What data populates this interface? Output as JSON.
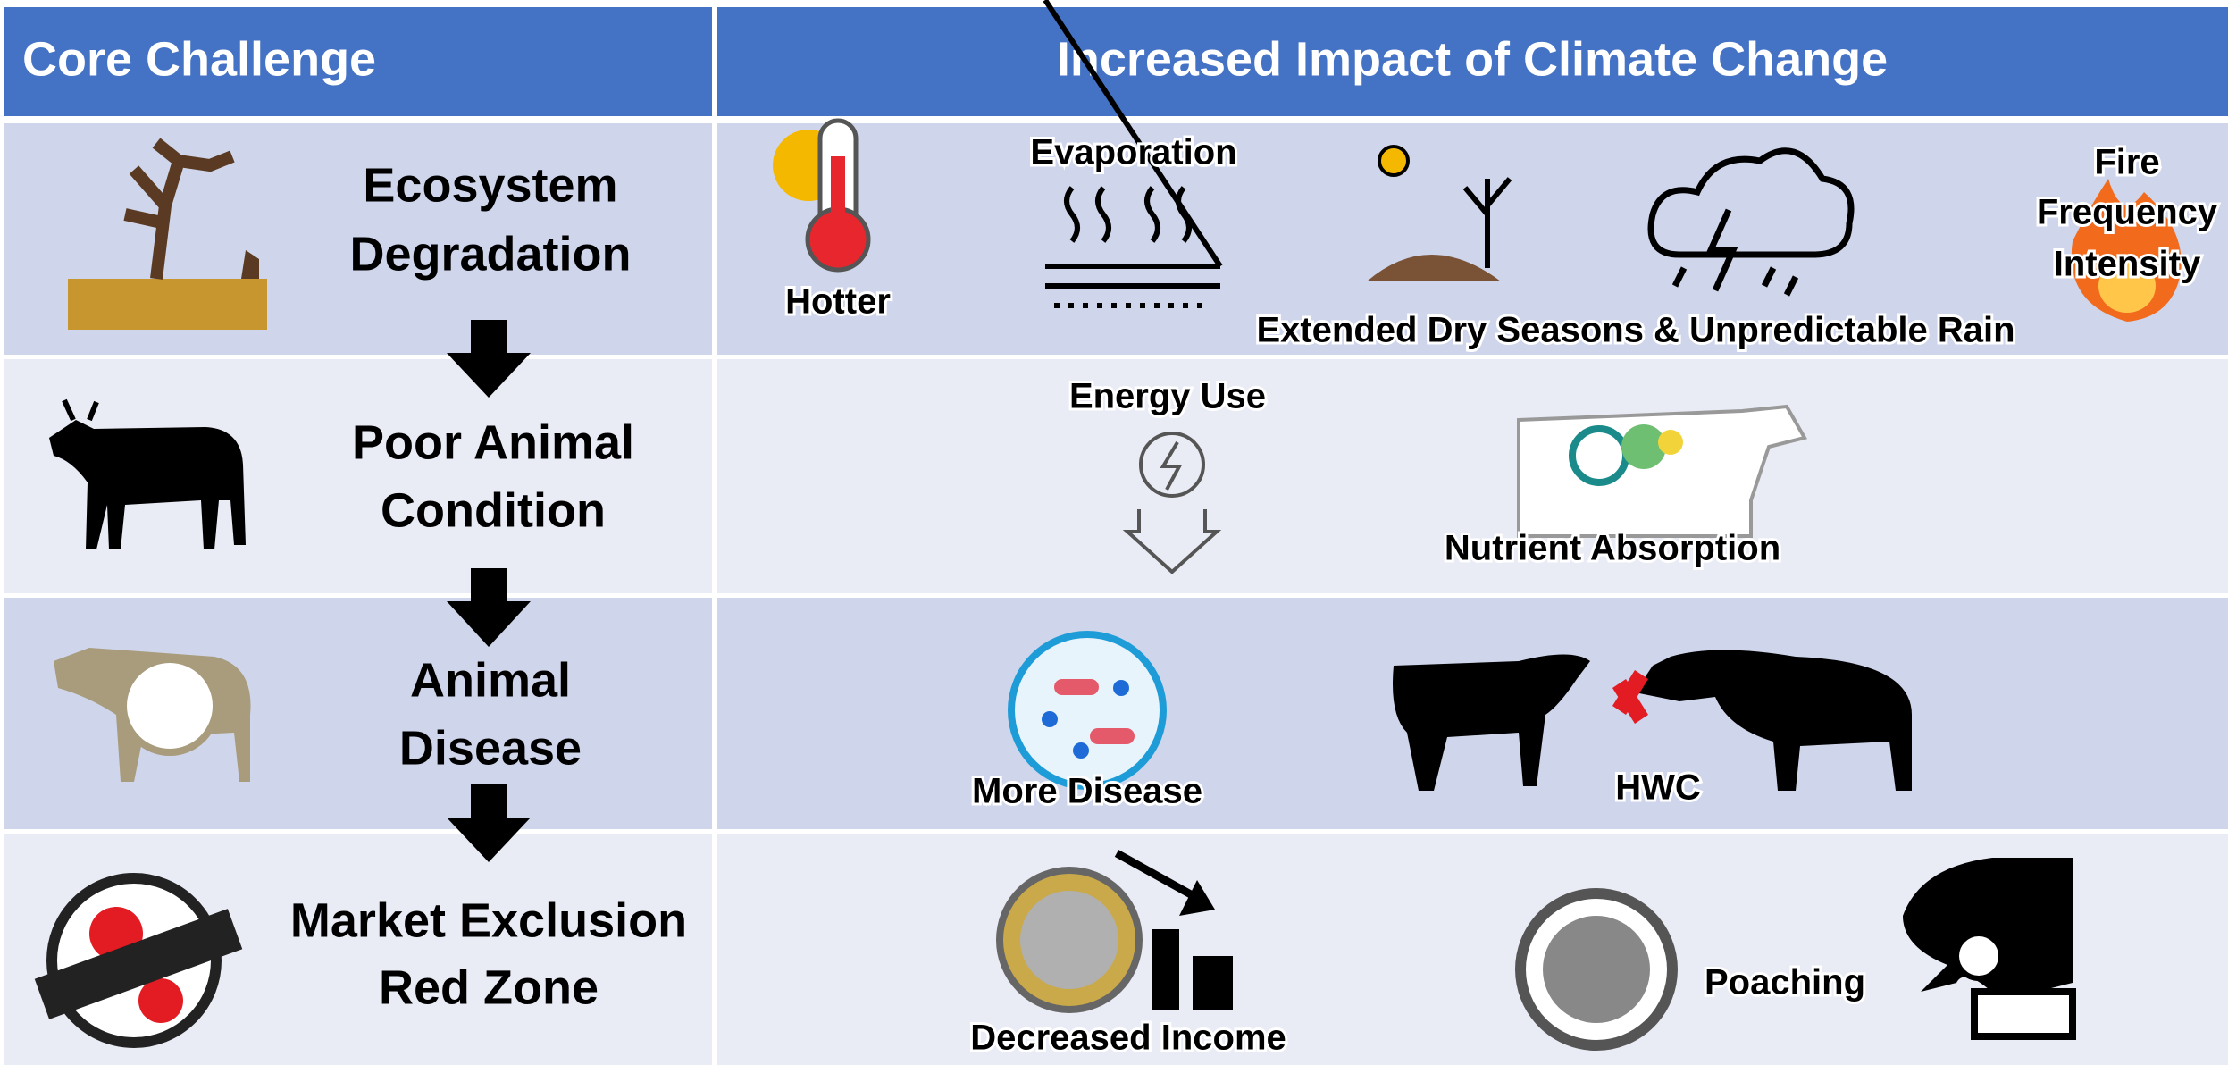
{
  "header": {
    "left": "Core Challenge",
    "right": "Increased Impact of Climate Change"
  },
  "rows": [
    {
      "challenge": [
        "Ecosystem",
        "Degradation"
      ],
      "impacts": [
        "Hotter",
        "Evaporation",
        "Extended Dry Seasons & Unpredictable Rain",
        [
          "Fire",
          "Frequency",
          "Intensity"
        ]
      ]
    },
    {
      "challenge": [
        "Poor Animal",
        "Condition"
      ],
      "impacts": [
        "Energy Use",
        "Nutrient Absorption"
      ]
    },
    {
      "challenge": [
        "Animal",
        "Disease"
      ],
      "impacts": [
        "More Disease",
        "HWC"
      ]
    },
    {
      "challenge": [
        "Market Exclusion",
        "Red Zone"
      ],
      "impacts": [
        "Decreased Income",
        "Poaching"
      ]
    }
  ]
}
